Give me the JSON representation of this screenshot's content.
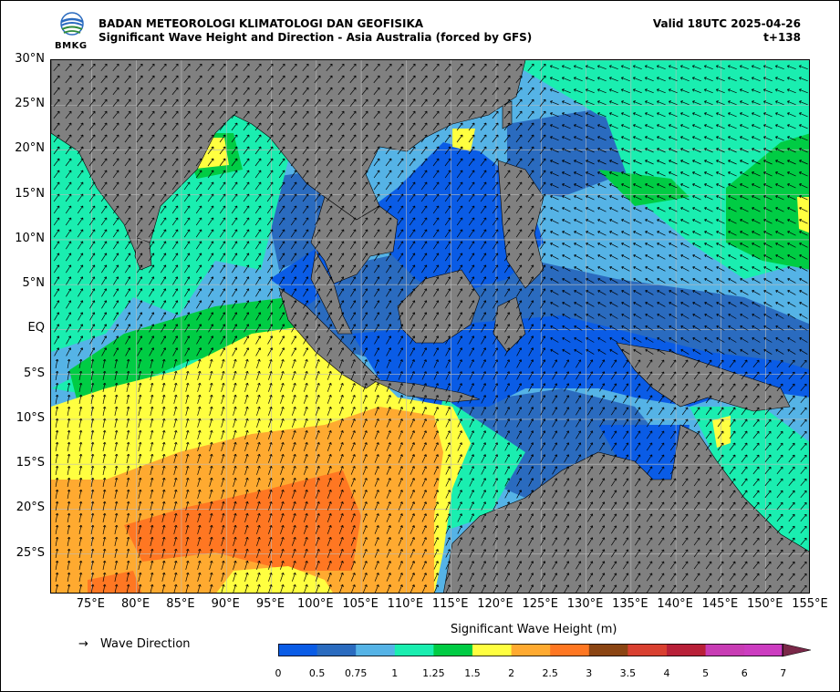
{
  "header": {
    "org": "BADAN METEOROLOGI KLIMATOLOGI DAN GEOFISIKA",
    "product": "Significant Wave Height and Direction - Asia Australia (forced by GFS)",
    "valid": "Valid 18UTC 2025-04-26",
    "lead": "t+138",
    "logo_text": "BMKG"
  },
  "map": {
    "lat_labels": [
      "30°N",
      "25°N",
      "20°N",
      "15°N",
      "10°N",
      "5°N",
      "EQ",
      "5°S",
      "10°S",
      "15°S",
      "20°S",
      "25°S"
    ],
    "lat_values": [
      30,
      25,
      20,
      15,
      10,
      5,
      0,
      -5,
      -10,
      -15,
      -20,
      -25
    ],
    "lon_labels": [
      "75°E",
      "80°E",
      "85°E",
      "90°E",
      "95°E",
      "100°E",
      "105°E",
      "110°E",
      "115°E",
      "120°E",
      "125°E",
      "130°E",
      "135°E",
      "140°E",
      "145°E",
      "150°E",
      "155°E"
    ],
    "lon_values": [
      75,
      80,
      85,
      90,
      95,
      100,
      105,
      110,
      115,
      120,
      125,
      130,
      135,
      140,
      145,
      150,
      155
    ],
    "lon_range": [
      70.5,
      155
    ],
    "lat_range": [
      -29.5,
      30
    ],
    "land_color": "#808080",
    "grid": true
  },
  "legend": {
    "arrow_glyph": "→",
    "arrow_label": "Wave Direction",
    "colorbar_title": "Significant Wave Height (m)",
    "colorbar_ticks": [
      "0",
      "0.5",
      "0.75",
      "1",
      "1.25",
      "1.5",
      "2",
      "2.5",
      "3",
      "3.5",
      "4",
      "5",
      "6",
      "7"
    ],
    "colorbar_colors": [
      "#0a5ce6",
      "#2a6bbf",
      "#55b3e6",
      "#1aeeb0",
      "#00cc44",
      "#ffff40",
      "#ffaa30",
      "#ff7722",
      "#8b4513",
      "#d94030",
      "#b82038",
      "#c83cb4",
      "#cc3cc0"
    ],
    "extend_color": "#7a2848"
  }
}
